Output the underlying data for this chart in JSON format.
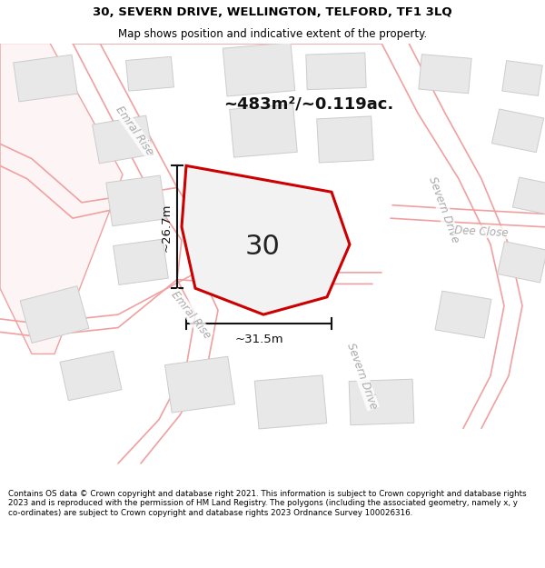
{
  "title_line1": "30, SEVERN DRIVE, WELLINGTON, TELFORD, TF1 3LQ",
  "title_line2": "Map shows position and indicative extent of the property.",
  "footer_text": "Contains OS data © Crown copyright and database right 2021. This information is subject to Crown copyright and database rights 2023 and is reproduced with the permission of HM Land Registry. The polygons (including the associated geometry, namely x, y co-ordinates) are subject to Crown copyright and database rights 2023 Ordnance Survey 100026316.",
  "map_bg": "#ffffff",
  "plot_bg": "#ffffff",
  "road_color": "#f0a0a0",
  "road_fill": "#f8f0f0",
  "building_color": "#e8e8e8",
  "building_edge": "#cccccc",
  "property_color": "#f0f0f0",
  "property_outline": "#cc0000",
  "dim_color": "#111111",
  "label_color": "#333333",
  "road_label_color": "#aaaaaa",
  "area_text": "~483m²/~0.119ac.",
  "dim_width": "~31.5m",
  "dim_height": "~26.7m",
  "property_number": "30",
  "figwidth": 6.0,
  "figheight": 6.25,
  "title_fontsize": 9.5,
  "subtitle_fontsize": 8.5,
  "footer_fontsize": 6.3
}
